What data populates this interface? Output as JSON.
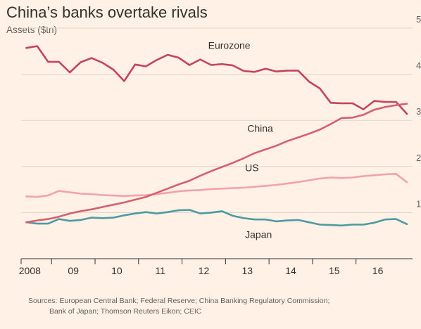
{
  "header": {
    "title": "China’s banks overtake rivals",
    "subtitle": "Assets ($tn)"
  },
  "source": {
    "line1": "Sources: European Central Bank; Federal Reserve; China Banking Regulatory Commission;",
    "line2": "Bank of Japan; Thomson Reuters Eikon; CEIC"
  },
  "chart_data": {
    "type": "line",
    "title": "China’s banks overtake rivals",
    "subtitle": "Assets ($tn)",
    "ylabel": "Assets ($tn)",
    "xlabel": "",
    "ylim": [
      0,
      5
    ],
    "xlim": [
      2007.8,
      2016.8
    ],
    "yticks": [
      1,
      2,
      3,
      4,
      5
    ],
    "ytick_labels": [
      "1",
      "2",
      "3",
      "4",
      "5"
    ],
    "xticks": [
      2008,
      2009,
      2010,
      2011,
      2012,
      2013,
      2014,
      2015,
      2016
    ],
    "xtick_labels": [
      "2008",
      "09",
      "10",
      "11",
      "12",
      "13",
      "14",
      "15",
      "16"
    ],
    "grid": "horizontal",
    "legend": "inline labels",
    "colors": {
      "background": "#fff1e5",
      "eurozone": "#c4445f",
      "china": "#d65f6f",
      "us": "#f3a2a8",
      "japan": "#4e9aa3",
      "grid": "#e0d5cb",
      "axis": "#33302e"
    },
    "series": [
      {
        "name": "Eurozone",
        "key": "eurozone",
        "points": [
          [
            2007.92,
            4.57
          ],
          [
            2008.17,
            4.61
          ],
          [
            2008.42,
            4.27
          ],
          [
            2008.67,
            4.27
          ],
          [
            2008.92,
            4.04
          ],
          [
            2009.17,
            4.26
          ],
          [
            2009.42,
            4.35
          ],
          [
            2009.67,
            4.25
          ],
          [
            2009.92,
            4.1
          ],
          [
            2010.17,
            3.85
          ],
          [
            2010.42,
            4.21
          ],
          [
            2010.67,
            4.17
          ],
          [
            2010.92,
            4.31
          ],
          [
            2011.17,
            4.42
          ],
          [
            2011.42,
            4.36
          ],
          [
            2011.67,
            4.2
          ],
          [
            2011.92,
            4.32
          ],
          [
            2012.17,
            4.2
          ],
          [
            2012.42,
            4.22
          ],
          [
            2012.67,
            4.19
          ],
          [
            2012.92,
            4.07
          ],
          [
            2013.17,
            4.05
          ],
          [
            2013.42,
            4.12
          ],
          [
            2013.67,
            4.06
          ],
          [
            2013.92,
            4.08
          ],
          [
            2014.17,
            4.08
          ],
          [
            2014.42,
            3.84
          ],
          [
            2014.67,
            3.69
          ],
          [
            2014.92,
            3.38
          ],
          [
            2015.17,
            3.37
          ],
          [
            2015.42,
            3.37
          ],
          [
            2015.67,
            3.24
          ],
          [
            2015.92,
            3.42
          ],
          [
            2016.17,
            3.4
          ],
          [
            2016.42,
            3.4
          ],
          [
            2016.67,
            3.14
          ]
        ]
      },
      {
        "name": "China",
        "key": "china",
        "points": [
          [
            2007.92,
            0.79
          ],
          [
            2008.17,
            0.83
          ],
          [
            2008.42,
            0.86
          ],
          [
            2008.67,
            0.91
          ],
          [
            2008.92,
            0.98
          ],
          [
            2009.17,
            1.03
          ],
          [
            2009.42,
            1.07
          ],
          [
            2009.67,
            1.12
          ],
          [
            2009.92,
            1.17
          ],
          [
            2010.17,
            1.22
          ],
          [
            2010.42,
            1.28
          ],
          [
            2010.67,
            1.34
          ],
          [
            2010.92,
            1.43
          ],
          [
            2011.17,
            1.52
          ],
          [
            2011.42,
            1.61
          ],
          [
            2011.67,
            1.69
          ],
          [
            2011.92,
            1.8
          ],
          [
            2012.17,
            1.9
          ],
          [
            2012.42,
            1.99
          ],
          [
            2012.67,
            2.08
          ],
          [
            2012.92,
            2.18
          ],
          [
            2013.17,
            2.29
          ],
          [
            2013.42,
            2.37
          ],
          [
            2013.67,
            2.45
          ],
          [
            2013.92,
            2.55
          ],
          [
            2014.17,
            2.63
          ],
          [
            2014.42,
            2.71
          ],
          [
            2014.67,
            2.8
          ],
          [
            2014.92,
            2.92
          ],
          [
            2015.17,
            3.05
          ],
          [
            2015.42,
            3.06
          ],
          [
            2015.67,
            3.12
          ],
          [
            2015.92,
            3.23
          ],
          [
            2016.17,
            3.29
          ],
          [
            2016.42,
            3.33
          ],
          [
            2016.67,
            3.36
          ]
        ]
      },
      {
        "name": "US",
        "key": "us",
        "points": [
          [
            2007.92,
            1.35
          ],
          [
            2008.17,
            1.34
          ],
          [
            2008.42,
            1.37
          ],
          [
            2008.67,
            1.47
          ],
          [
            2008.92,
            1.44
          ],
          [
            2009.17,
            1.41
          ],
          [
            2009.42,
            1.4
          ],
          [
            2009.67,
            1.38
          ],
          [
            2009.92,
            1.37
          ],
          [
            2010.17,
            1.36
          ],
          [
            2010.42,
            1.37
          ],
          [
            2010.67,
            1.38
          ],
          [
            2010.92,
            1.4
          ],
          [
            2011.17,
            1.43
          ],
          [
            2011.42,
            1.46
          ],
          [
            2011.67,
            1.48
          ],
          [
            2011.92,
            1.49
          ],
          [
            2012.17,
            1.51
          ],
          [
            2012.42,
            1.52
          ],
          [
            2012.67,
            1.53
          ],
          [
            2012.92,
            1.54
          ],
          [
            2013.17,
            1.56
          ],
          [
            2013.42,
            1.58
          ],
          [
            2013.67,
            1.6
          ],
          [
            2013.92,
            1.63
          ],
          [
            2014.17,
            1.66
          ],
          [
            2014.42,
            1.7
          ],
          [
            2014.67,
            1.74
          ],
          [
            2014.92,
            1.76
          ],
          [
            2015.17,
            1.75
          ],
          [
            2015.42,
            1.76
          ],
          [
            2015.67,
            1.79
          ],
          [
            2015.92,
            1.81
          ],
          [
            2016.17,
            1.83
          ],
          [
            2016.42,
            1.84
          ],
          [
            2016.67,
            1.66
          ]
        ]
      },
      {
        "name": "Japan",
        "key": "japan",
        "points": [
          [
            2007.92,
            0.79
          ],
          [
            2008.17,
            0.76
          ],
          [
            2008.42,
            0.76
          ],
          [
            2008.67,
            0.86
          ],
          [
            2008.92,
            0.82
          ],
          [
            2009.17,
            0.84
          ],
          [
            2009.42,
            0.89
          ],
          [
            2009.67,
            0.88
          ],
          [
            2009.92,
            0.89
          ],
          [
            2010.17,
            0.94
          ],
          [
            2010.42,
            0.98
          ],
          [
            2010.67,
            1.01
          ],
          [
            2010.92,
            0.98
          ],
          [
            2011.17,
            1.01
          ],
          [
            2011.42,
            1.05
          ],
          [
            2011.67,
            1.06
          ],
          [
            2011.92,
            0.98
          ],
          [
            2012.17,
            1.0
          ],
          [
            2012.42,
            1.03
          ],
          [
            2012.67,
            0.93
          ],
          [
            2012.92,
            0.88
          ],
          [
            2013.17,
            0.85
          ],
          [
            2013.42,
            0.85
          ],
          [
            2013.67,
            0.81
          ],
          [
            2013.92,
            0.83
          ],
          [
            2014.17,
            0.84
          ],
          [
            2014.42,
            0.79
          ],
          [
            2014.67,
            0.74
          ],
          [
            2014.92,
            0.73
          ],
          [
            2015.17,
            0.72
          ],
          [
            2015.42,
            0.74
          ],
          [
            2015.67,
            0.74
          ],
          [
            2015.92,
            0.78
          ],
          [
            2016.17,
            0.85
          ],
          [
            2016.42,
            0.86
          ],
          [
            2016.67,
            0.75
          ]
        ]
      }
    ]
  }
}
